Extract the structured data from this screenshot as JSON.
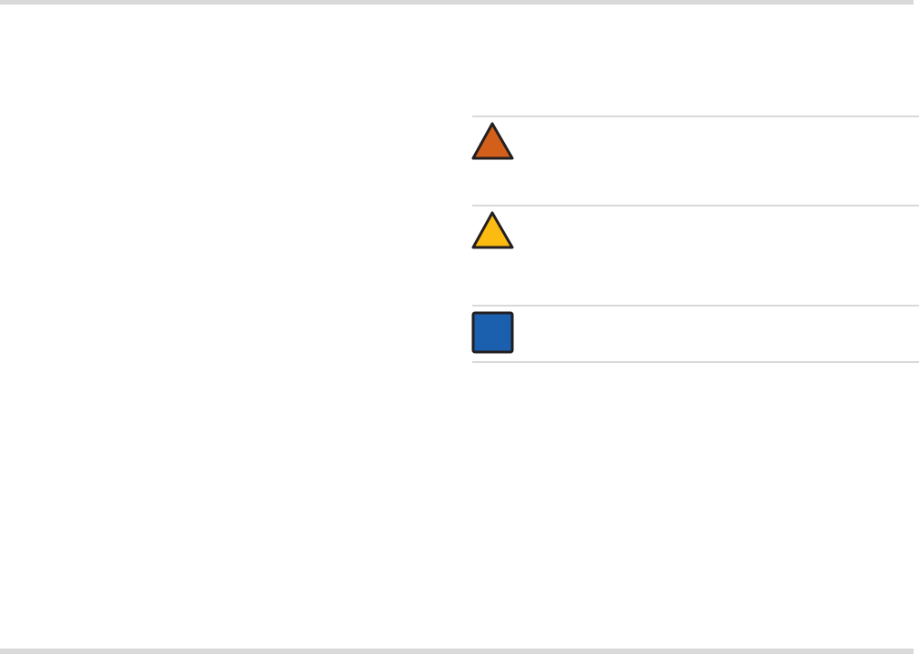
{
  "symbols": [
    {
      "icon": "warning-triangle-icon",
      "color": "#d2601a"
    },
    {
      "icon": "caution-triangle-icon",
      "color": "#fbbb10"
    },
    {
      "icon": "notice-square-icon",
      "color": "#1b5faf"
    }
  ],
  "border_color": "#231f20",
  "rule_color": "#d9d9d9"
}
